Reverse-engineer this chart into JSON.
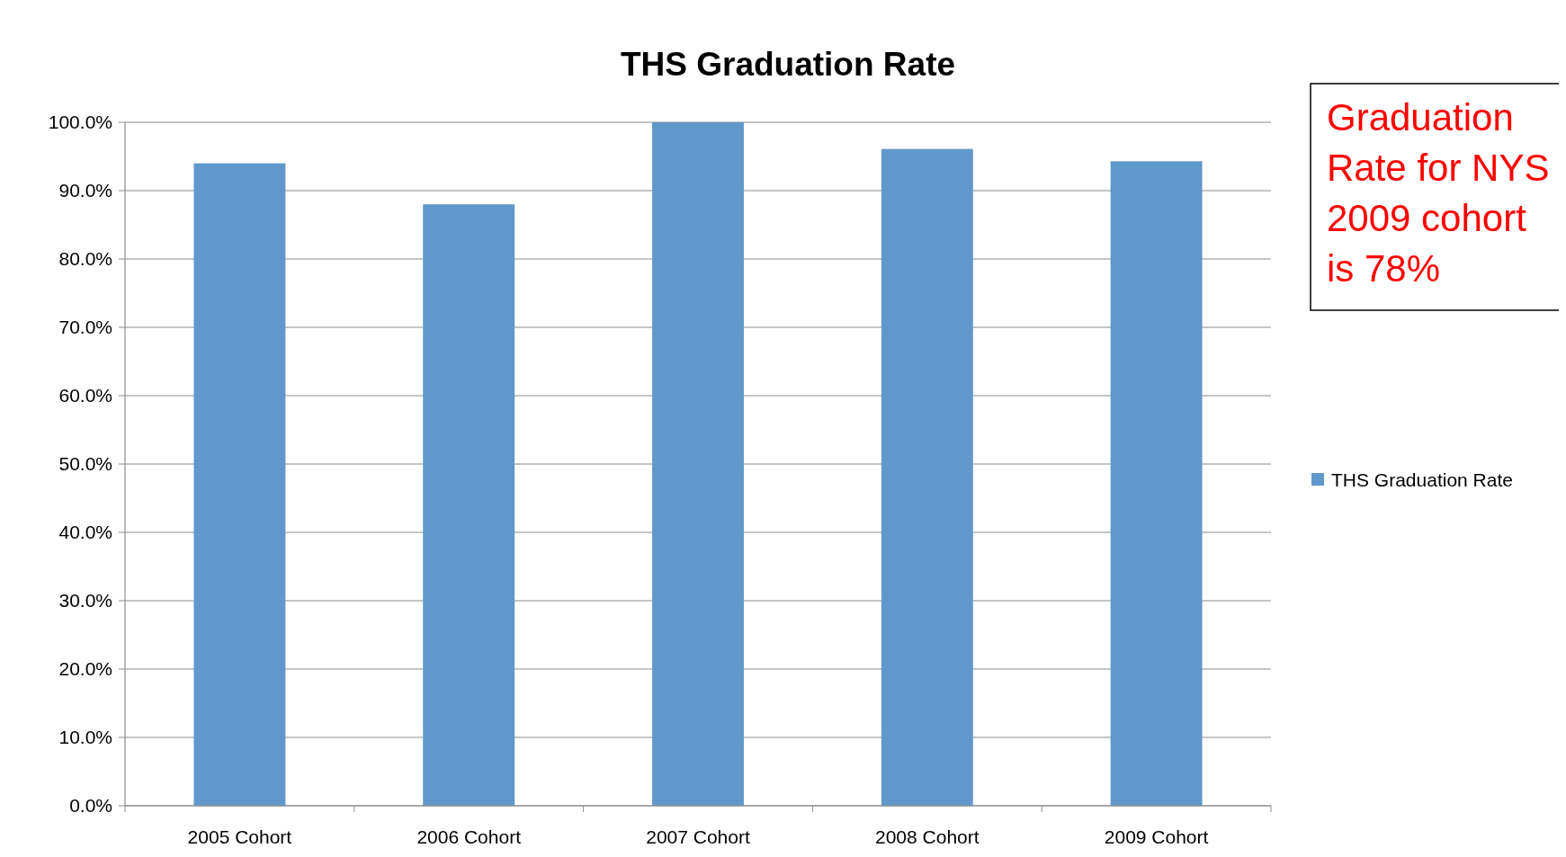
{
  "chart_data": {
    "type": "bar",
    "title": "THS Graduation Rate",
    "categories": [
      "2005 Cohort",
      "2006 Cohort",
      "2007 Cohort",
      "2008 Cohort",
      "2009 Cohort"
    ],
    "series": [
      {
        "name": "THS Graduation Rate",
        "color": "#6198cb",
        "values": [
          94.0,
          88.0,
          100.0,
          96.1,
          94.3
        ]
      }
    ],
    "ylim": [
      0,
      100
    ],
    "yticks": [
      {
        "value": 0,
        "label": "0.0%"
      },
      {
        "value": 10,
        "label": "10.0%"
      },
      {
        "value": 20,
        "label": "20.0%"
      },
      {
        "value": 30,
        "label": "30.0%"
      },
      {
        "value": 40,
        "label": "40.0%"
      },
      {
        "value": 50,
        "label": "50.0%"
      },
      {
        "value": 60,
        "label": "60.0%"
      },
      {
        "value": 70,
        "label": "70.0%"
      },
      {
        "value": 80,
        "label": "80.0%"
      },
      {
        "value": 90,
        "label": "90.0%"
      },
      {
        "value": 100,
        "label": "100.0%"
      }
    ],
    "grid": "y",
    "legend": "right",
    "annotations": [
      "Graduation Rate for NYS 2009 cohort is 78%"
    ]
  }
}
